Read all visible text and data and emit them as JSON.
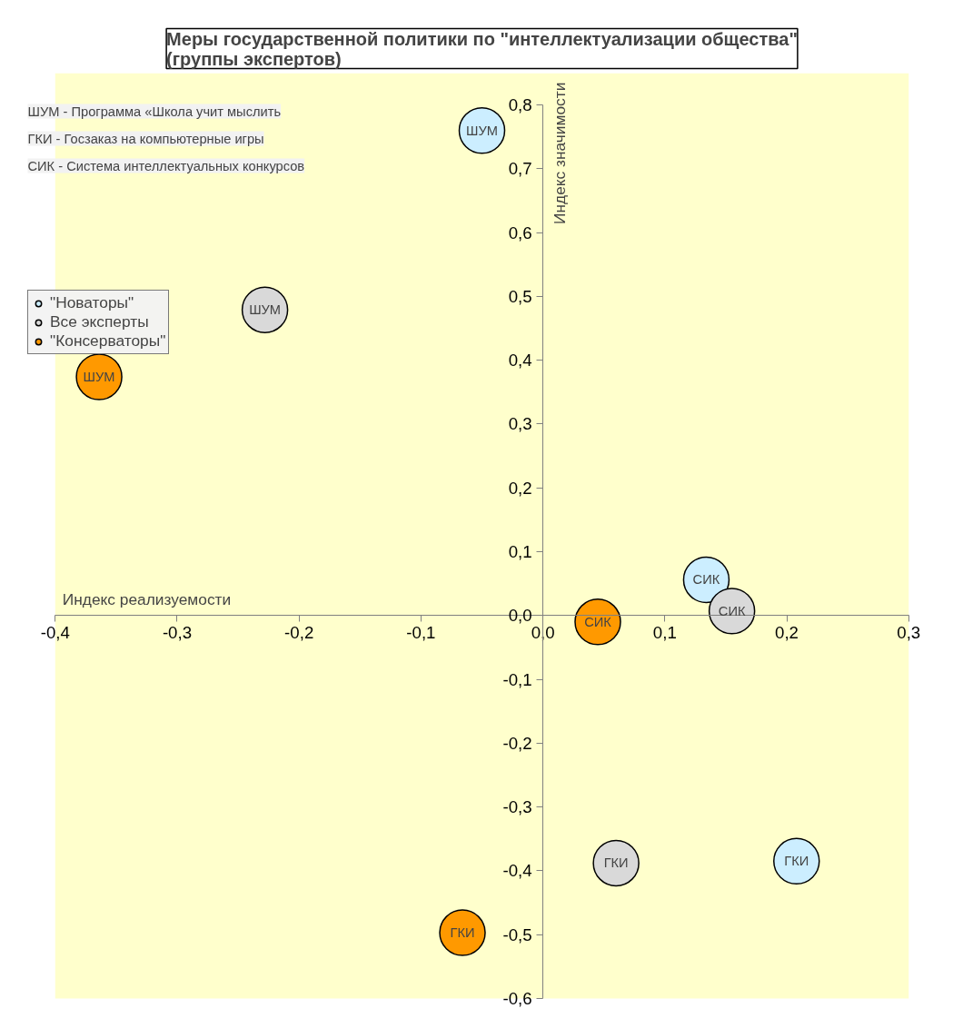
{
  "chart_data": {
    "type": "scatter",
    "title": "Меры государственной политики по \"интеллектуализации общества\"\n(группы экспертов)",
    "xlabel": "Индекс реализуемости",
    "ylabel": "Индекс значимости",
    "xlim": [
      -0.4,
      0.3
    ],
    "ylim": [
      -0.6,
      0.85
    ],
    "xticks": [
      {
        "value": -0.4,
        "label": "-0,4"
      },
      {
        "value": -0.3,
        "label": "-0,3"
      },
      {
        "value": -0.2,
        "label": "-0,2"
      },
      {
        "value": -0.1,
        "label": "-0,1"
      },
      {
        "value": 0,
        "label": "0,0"
      },
      {
        "value": 0.1,
        "label": "0,1"
      },
      {
        "value": 0.2,
        "label": "0,2"
      },
      {
        "value": 0.3,
        "label": "0,3"
      }
    ],
    "yticks": [
      {
        "value": -0.6,
        "label": "-0,6"
      },
      {
        "value": -0.5,
        "label": "-0,5"
      },
      {
        "value": -0.4,
        "label": "-0,4"
      },
      {
        "value": -0.3,
        "label": "-0,3"
      },
      {
        "value": -0.2,
        "label": "-0,2"
      },
      {
        "value": -0.1,
        "label": "-0,1"
      },
      {
        "value": 0,
        "label": "0,0"
      },
      {
        "value": 0.1,
        "label": "0,1"
      },
      {
        "value": 0.2,
        "label": "0,2"
      },
      {
        "value": 0.3,
        "label": "0,3"
      },
      {
        "value": 0.4,
        "label": "0,4"
      },
      {
        "value": 0.5,
        "label": "0,5"
      },
      {
        "value": 0.6,
        "label": "0,6"
      },
      {
        "value": 0.7,
        "label": "0,7"
      },
      {
        "value": 0.8,
        "label": "0,8"
      }
    ],
    "series": [
      {
        "name": "\"Новаторы\"",
        "color": "#cceeff",
        "x": [
          -0.05,
          0.134,
          0.208
        ],
        "values": [
          0.76,
          0.056,
          -0.385
        ]
      },
      {
        "name": "Все эксперты",
        "color": "#d9d9d9",
        "x": [
          -0.228,
          0.155,
          0.06
        ],
        "values": [
          0.479,
          0.007,
          -0.388
        ]
      },
      {
        "name": "\"Консерваторы\"",
        "color": "#ff9900",
        "x": [
          -0.364,
          0.045,
          -0.066
        ],
        "values": [
          0.374,
          -0.01,
          -0.497
        ]
      }
    ],
    "annotations": [
      "ШУМ - Программа «Школа учит мыслить",
      "ГКИ - Госзаказ на компьютерные игры",
      "СИК - Система интеллектуальных конкурсов",
      {
        "text": "ШУМ",
        "x": -0.05,
        "y": 0.76
      },
      {
        "text": "СИК",
        "x": 0.134,
        "y": 0.056
      },
      {
        "text": "ГКИ",
        "x": 0.208,
        "y": -0.385
      },
      {
        "text": "ШУМ",
        "x": -0.228,
        "y": 0.479
      },
      {
        "text": "СИК",
        "x": 0.155,
        "y": 0.007
      },
      {
        "text": "ГКИ",
        "x": 0.06,
        "y": -0.388
      },
      {
        "text": "ШУМ",
        "x": -0.364,
        "y": 0.374
      },
      {
        "text": "СИК",
        "x": 0.045,
        "y": -0.01
      },
      {
        "text": "ГКИ",
        "x": -0.066,
        "y": -0.497
      }
    ],
    "marker": "circle",
    "grid": false,
    "legend": "top left"
  }
}
